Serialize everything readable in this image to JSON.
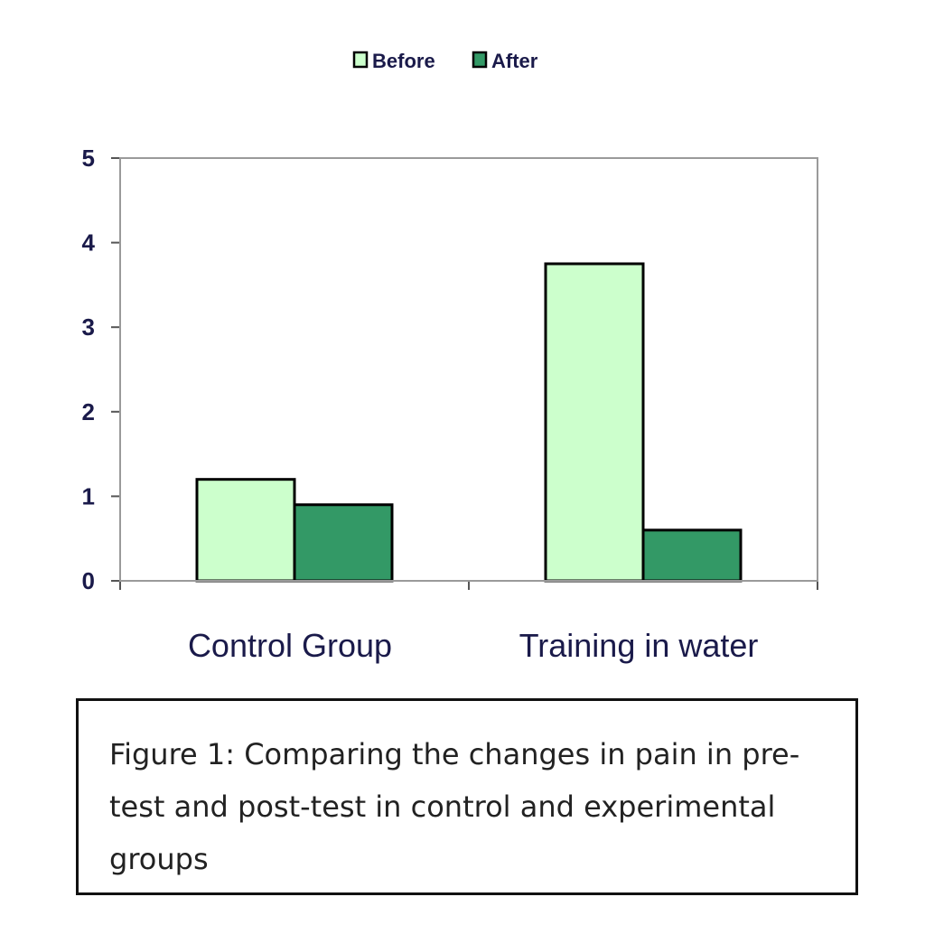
{
  "chart_data": {
    "type": "bar",
    "categories": [
      "Control Group",
      "Training in water"
    ],
    "series": [
      {
        "name": "Before",
        "values": [
          1.2,
          3.75
        ],
        "color": "#ccffcc"
      },
      {
        "name": "After",
        "values": [
          0.9,
          0.6
        ],
        "color": "#339966"
      }
    ],
    "ylim": [
      0,
      5
    ],
    "yticks": [
      0,
      1,
      2,
      3,
      4,
      5
    ],
    "grid": false,
    "legend_position": "top"
  },
  "caption": "Figure 1: Comparing the changes in pain in pre-test and post-test in control and experimental groups"
}
